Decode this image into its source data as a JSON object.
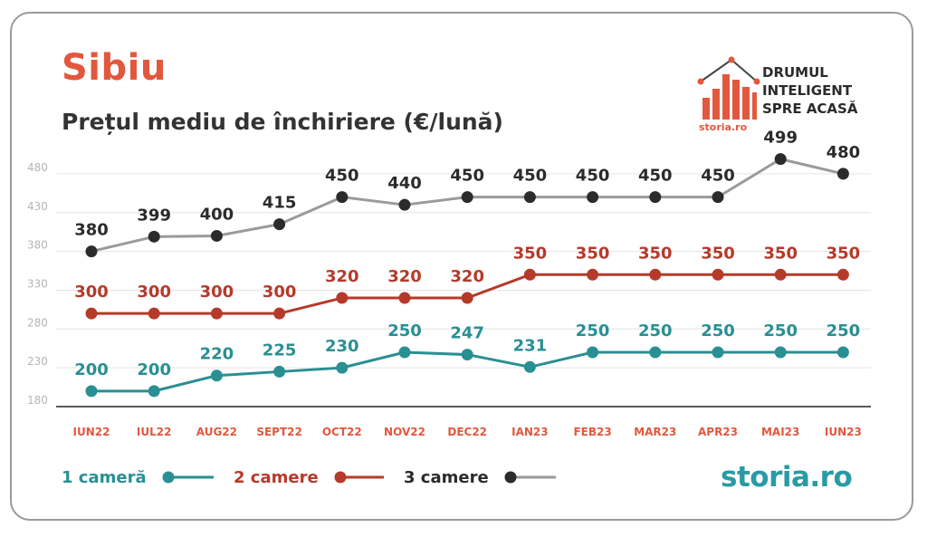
{
  "title": "Sibiu",
  "subtitle": "Prețul mediu de închiriere (€/lună)",
  "logo": {
    "tagline": "DRUMUL\nINTELIGENT\nSPRE ACASĂ",
    "small_brand": "storia.ro"
  },
  "brand": "storia.ro",
  "colors": {
    "accent": "#e2583e",
    "teal": "#2a8f93",
    "red": "#b53a2a",
    "dark": "#2b2b2b",
    "grey_line": "#9a9a9e",
    "axis_label": "#e2583e",
    "brand_teal": "#2a9aa6"
  },
  "chart_data": {
    "type": "line",
    "categories": [
      "IUN22",
      "IUL22",
      "AUG22",
      "SEPT22",
      "OCT22",
      "NOV22",
      "DEC22",
      "IAN23",
      "FEB23",
      "MAR23",
      "APR23",
      "MAI23",
      "IUN23"
    ],
    "y_ticks": [
      180,
      230,
      280,
      330,
      380,
      430,
      480
    ],
    "ylim": [
      180,
      520
    ],
    "grid": true,
    "legend_position": "bottom-left",
    "series": [
      {
        "name": "1 cameră",
        "values": [
          200,
          200,
          220,
          225,
          230,
          250,
          247,
          231,
          250,
          250,
          250,
          250,
          250
        ]
      },
      {
        "name": "2 camere",
        "values": [
          300,
          300,
          300,
          300,
          320,
          320,
          320,
          350,
          350,
          350,
          350,
          350,
          350
        ]
      },
      {
        "name": "3 camere",
        "values": [
          380,
          399,
          400,
          415,
          450,
          440,
          450,
          450,
          450,
          450,
          450,
          499,
          480
        ]
      }
    ]
  }
}
